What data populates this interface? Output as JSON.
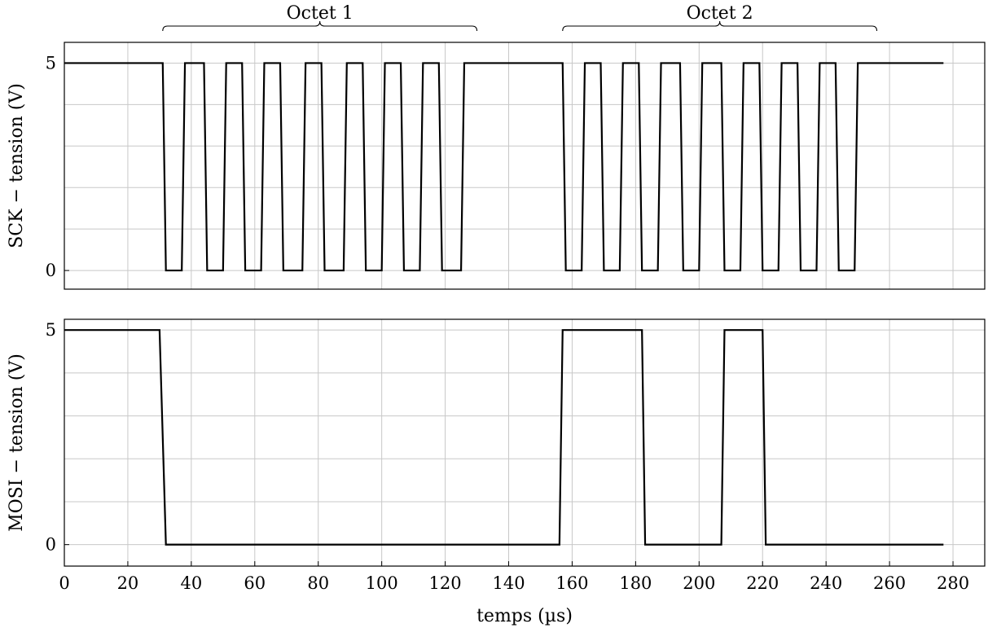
{
  "chart_data": [
    {
      "type": "line",
      "ylabel": "SCK − tension (V)",
      "xlim": [
        0,
        290
      ],
      "ylim": [
        -0.45,
        5.5
      ],
      "yticks": [
        0,
        5
      ],
      "series": [
        {
          "x": [
            0,
            31,
            32,
            37,
            38,
            44,
            45,
            50,
            51,
            56,
            57,
            62,
            63,
            68,
            69,
            75,
            76,
            81,
            82,
            88,
            89,
            94,
            95,
            100,
            101,
            106,
            107,
            112,
            113,
            118,
            119,
            125,
            126,
            157,
            158,
            163,
            164,
            169,
            170,
            175,
            176,
            181,
            182,
            187,
            188,
            194,
            195,
            200,
            201,
            207,
            208,
            213,
            214,
            219,
            220,
            225,
            226,
            231,
            232,
            237,
            238,
            243,
            244,
            249,
            250,
            277
          ],
          "y": [
            5,
            5,
            0,
            0,
            5,
            5,
            0,
            0,
            5,
            5,
            0,
            0,
            5,
            5,
            0,
            0,
            5,
            5,
            0,
            0,
            5,
            5,
            0,
            0,
            5,
            5,
            0,
            0,
            5,
            5,
            0,
            0,
            5,
            5,
            0,
            0,
            5,
            5,
            0,
            0,
            5,
            5,
            0,
            0,
            5,
            5,
            0,
            0,
            5,
            5,
            0,
            0,
            5,
            5,
            0,
            0,
            5,
            5,
            0,
            0,
            5,
            5,
            0,
            0,
            5,
            5
          ]
        }
      ],
      "annotations": [
        {
          "text": "Octet 1",
          "x_start": 31,
          "x_end": 130
        },
        {
          "text": "Octet 2",
          "x_start": 157,
          "x_end": 256
        }
      ]
    },
    {
      "type": "line",
      "ylabel": "MOSI − tension (V)",
      "xlabel": "temps (µs)",
      "xlim": [
        0,
        290
      ],
      "ylim": [
        -0.5,
        5.25
      ],
      "xticks": [
        0,
        20,
        40,
        60,
        80,
        100,
        120,
        140,
        160,
        180,
        200,
        220,
        240,
        260,
        280
      ],
      "yticks": [
        0,
        5
      ],
      "series": [
        {
          "x": [
            0,
            30,
            32,
            156,
            157,
            182,
            183,
            207,
            208,
            220,
            221,
            277
          ],
          "y": [
            5,
            5,
            0,
            0,
            5,
            5,
            0,
            0,
            5,
            5,
            0,
            0
          ]
        }
      ]
    }
  ]
}
